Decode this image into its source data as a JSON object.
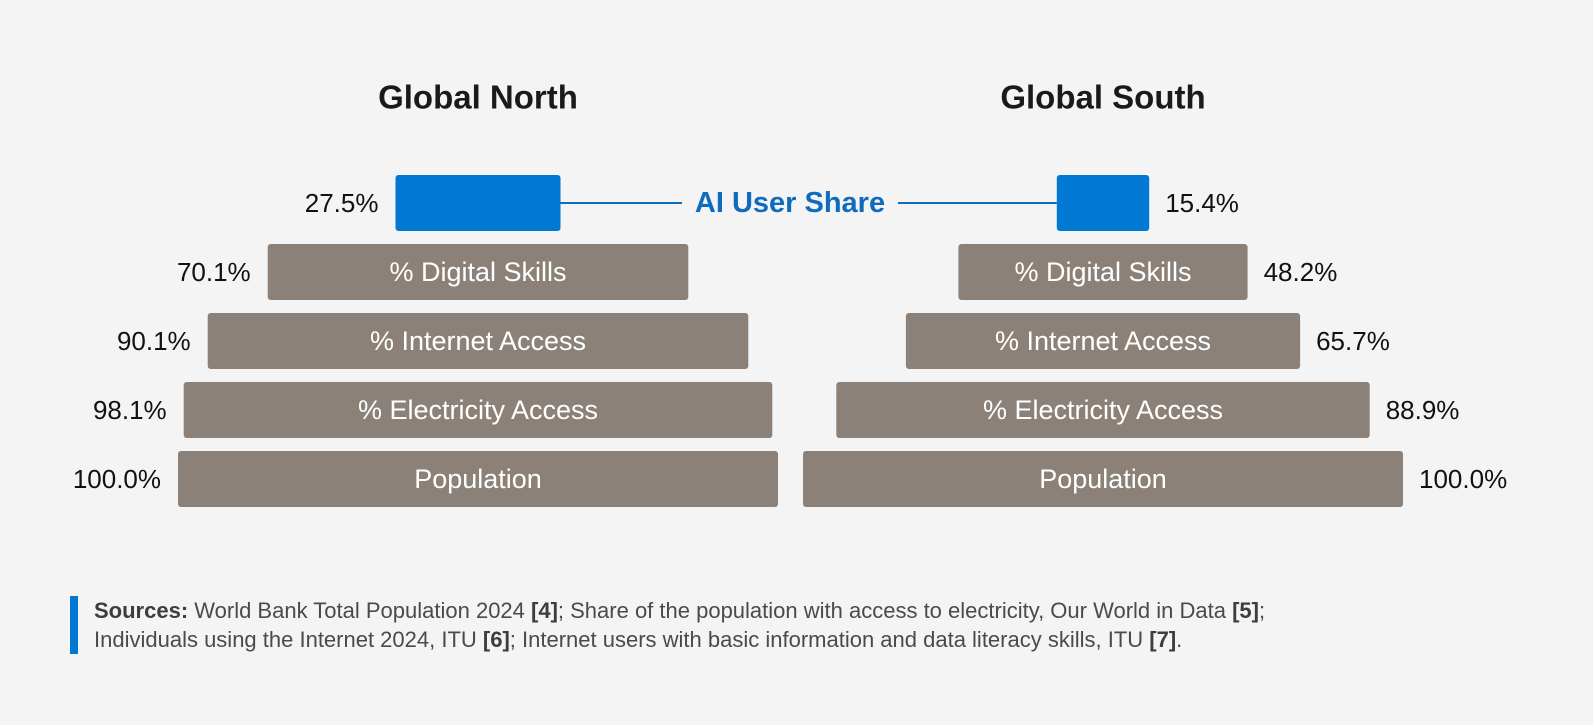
{
  "chart_data": [
    {
      "type": "funnel",
      "title": "Global North",
      "categories": [
        "AI User Share",
        "% Digital Skills",
        "% Internet Access",
        "% Electricity Access",
        "Population"
      ],
      "values": [
        27.5,
        70.1,
        90.1,
        98.1,
        100
      ],
      "value_labels": [
        "27.5%",
        "70.1%",
        "90.1%",
        "98.1%",
        "100.0%"
      ],
      "colors": [
        "#0078d4",
        "#8b8178",
        "#8b8178",
        "#8b8178",
        "#8b8178"
      ],
      "xlim": [
        0,
        100
      ],
      "label_side": "left"
    },
    {
      "type": "funnel",
      "title": "Global South",
      "categories": [
        null,
        "% Digital Skills",
        "% Internet Access",
        "% Electricity Access",
        "Population"
      ],
      "values": [
        15.4,
        48.2,
        65.7,
        88.9,
        100
      ],
      "value_labels": [
        "15.4%",
        "48.2%",
        "65.7%",
        "88.9%",
        "100.0%"
      ],
      "colors": [
        "#0078d4",
        "#8b8178",
        "#8b8178",
        "#8b8178",
        "#8b8178"
      ],
      "xlim": [
        0,
        100
      ],
      "label_side": "right"
    }
  ],
  "sources": [
    {
      "text": "Sources:",
      "bold": true
    },
    {
      "text": " World Bank Total Population 2024 ",
      "bold": false
    },
    {
      "text": "[4]",
      "bold": true
    },
    {
      "text": "; Share of the population with access to electricity, Our World in Data ",
      "bold": false
    },
    {
      "text": "[5]",
      "bold": true
    },
    {
      "text": "; Individuals using the Internet 2024, ITU ",
      "bold": false
    },
    {
      "text": "[6]",
      "bold": true
    },
    {
      "text": "; Internet users with basic information and data literacy skills, ITU ",
      "bold": false
    },
    {
      "text": "[7]",
      "bold": true
    },
    {
      "text": ".",
      "bold": false
    }
  ]
}
